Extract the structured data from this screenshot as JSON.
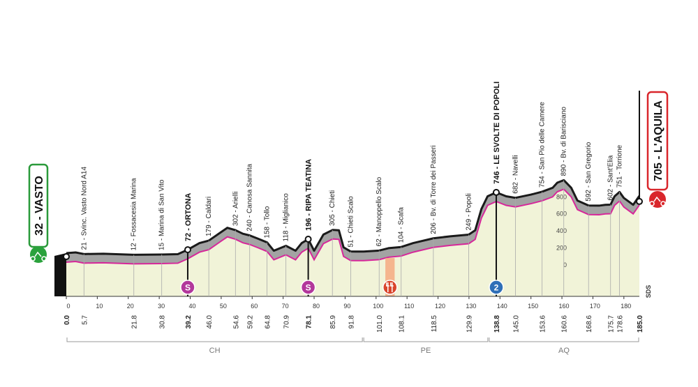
{
  "chart_data": {
    "type": "area",
    "x": [
      0,
      3,
      5.7,
      12,
      21.8,
      30.8,
      36,
      39.2,
      43,
      46,
      50,
      52,
      54.6,
      57,
      59.2,
      62,
      64.8,
      67,
      70.9,
      74,
      76,
      78.1,
      80,
      83,
      86,
      88,
      89.5,
      91.8,
      96,
      101,
      104,
      108.1,
      112,
      118.5,
      124,
      129.9,
      132,
      134,
      136,
      138.8,
      142,
      145,
      150,
      153.6,
      157,
      158.5,
      160.6,
      163,
      165,
      168.6,
      172,
      174,
      175.7,
      177,
      178.6,
      180,
      181.5,
      183,
      185
    ],
    "values": [
      32,
      40,
      21,
      25,
      12,
      15,
      20,
      72,
      150,
      179,
      280,
      330,
      302,
      260,
      240,
      200,
      158,
      60,
      118,
      60,
      150,
      196,
      60,
      250,
      305,
      300,
      100,
      51,
      50,
      62,
      90,
      104,
      150,
      206,
      230,
      249,
      300,
      550,
      700,
      746,
      700,
      682,
      720,
      754,
      800,
      860,
      890,
      800,
      650,
      592,
      590,
      600,
      602,
      700,
      751,
      680,
      640,
      600,
      705
    ],
    "color": "#d6279a",
    "xlim": [
      0,
      185
    ],
    "xticks": [
      0,
      10,
      20,
      30,
      40,
      50,
      60,
      70,
      80,
      90,
      100,
      110,
      120,
      130,
      140,
      150,
      160,
      170,
      180
    ],
    "ylim": [
      -370,
      2000
    ],
    "yticks": [
      0,
      200,
      400,
      600,
      800
    ],
    "waypoints": [
      {
        "km": {
          "value": 0,
          "label": "0.0"
        },
        "label": "32 - VASTO",
        "kind": "start"
      },
      {
        "km": 5.7,
        "label": "21 - Svinc. Vasto Nord A14",
        "kind": "town"
      },
      {
        "km": 21.8,
        "label": "12 - Fossacesia Marina",
        "kind": "town"
      },
      {
        "km": 30.8,
        "label": "15 - Marina di San Vito",
        "kind": "town"
      },
      {
        "km": 39.2,
        "label": "72 - ORTONA",
        "kind": "sprint",
        "icon": "S"
      },
      {
        "km": {
          "value": 46,
          "label": "46.0"
        },
        "label": "179 - Caldari",
        "kind": "town"
      },
      {
        "km": 54.6,
        "label": "302 - Arielli",
        "kind": "town"
      },
      {
        "km": 59.2,
        "label": "240 - Canosa Sannita",
        "kind": "town"
      },
      {
        "km": 64.8,
        "label": "158 - Tollo",
        "kind": "town"
      },
      {
        "km": 70.9,
        "label": "118 - Miglianico",
        "kind": "town"
      },
      {
        "km": 78.1,
        "label": "196 - RIPA TEATINA",
        "kind": "sprint",
        "icon": "S"
      },
      {
        "km": 85.9,
        "label": "305 - Chieti",
        "kind": "town"
      },
      {
        "km": 91.8,
        "label": "51 - Chieti Scalo",
        "kind": "town"
      },
      {
        "km": {
          "value": 101,
          "label": "101.0"
        },
        "label": "62 - Manoppello Scalo",
        "kind": "town"
      },
      {
        "km": 108.1,
        "label": "104 - Scafa",
        "kind": "town"
      },
      {
        "km": 118.5,
        "label": "206 - Bv. di Torre dei Passeri",
        "kind": "town"
      },
      {
        "km": 129.9,
        "label": "249 - Popoli",
        "kind": "town"
      },
      {
        "km": 138.8,
        "label": "746 - LE SVOLTE DI POPOLI",
        "kind": "kom",
        "icon": "2"
      },
      {
        "km": {
          "value": 145,
          "label": "145.0"
        },
        "label": "682 - Navelli",
        "kind": "town"
      },
      {
        "km": 153.6,
        "label": "754 - San Pio delle Camere",
        "kind": "town"
      },
      {
        "km": 160.6,
        "label": "890 - Bv. di Barisciano",
        "kind": "town"
      },
      {
        "km": 168.6,
        "label": "592 - San Gregorio",
        "kind": "town"
      },
      {
        "km": 175.7,
        "label": "602 - Sant'Elia",
        "kind": "town"
      },
      {
        "km": 178.6,
        "label": "751 - Torrione",
        "kind": "town"
      },
      {
        "km": {
          "value": 185,
          "label": "185.0"
        },
        "label": "705 - L'AQUILA",
        "kind": "finish"
      }
    ],
    "feed_zone": [
      103,
      106
    ],
    "regions": [
      {
        "label": "CH",
        "from": 0,
        "to": 95.8
      },
      {
        "label": "PE",
        "from": 95.8,
        "to": 136.3
      },
      {
        "label": "AQ",
        "from": 136.3,
        "to": 185
      }
    ],
    "brand": "SDS"
  }
}
